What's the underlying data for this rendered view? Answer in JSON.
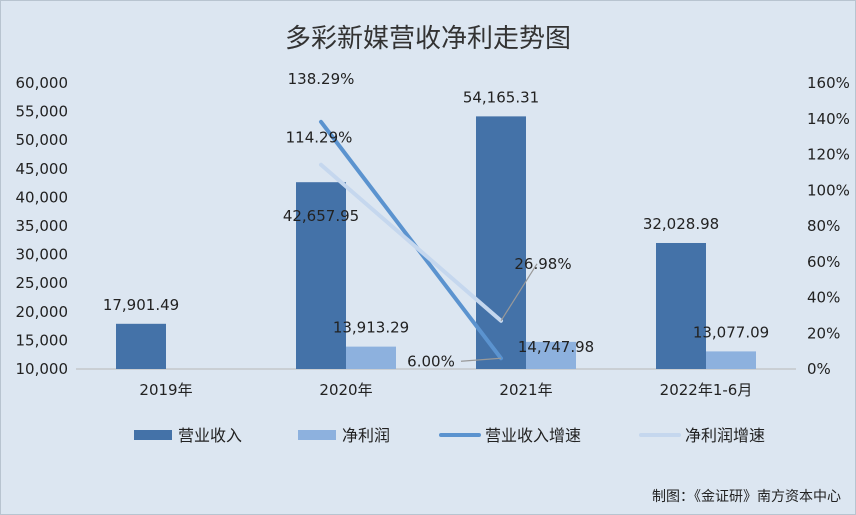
{
  "chart_data": {
    "type": "bar",
    "title": "多彩新媒营收净利走势图",
    "categories": [
      "2019年",
      "2020年",
      "2021年",
      "2022年1-6月"
    ],
    "series": [
      {
        "name": "营业收入",
        "type": "bar",
        "axis": "left",
        "color": "#4472a8",
        "values": [
          17901.49,
          42657.95,
          54165.31,
          32028.98
        ],
        "labels": [
          "17,901.49",
          "42,657.95",
          "54,165.31",
          "32,028.98"
        ]
      },
      {
        "name": "净利润",
        "type": "bar",
        "axis": "left",
        "color": "#8db1de",
        "values": [
          null,
          13913.29,
          14747.98,
          13077.09
        ],
        "labels": [
          "",
          "13,913.29",
          "14,747.98",
          "13,077.09"
        ]
      },
      {
        "name": "营业收入增速",
        "type": "line",
        "axis": "right",
        "color": "#5b93cf",
        "values": [
          null,
          138.29,
          6.0,
          null
        ],
        "labels": [
          "",
          "138.29%",
          "6.00%",
          ""
        ]
      },
      {
        "name": "净利润增速",
        "type": "line",
        "axis": "right",
        "color": "#c5d7ee",
        "values": [
          null,
          114.29,
          26.98,
          null
        ],
        "labels": [
          "",
          "114.29%",
          "26.98%",
          ""
        ]
      }
    ],
    "y_left": {
      "min": 10000,
      "max": 60000,
      "step": 5000,
      "tick_labels": [
        "10,000",
        "15,000",
        "20,000",
        "25,000",
        "30,000",
        "35,000",
        "40,000",
        "45,000",
        "50,000",
        "55,000",
        "60,000"
      ]
    },
    "y_right": {
      "min": 0,
      "max": 160,
      "step": 20,
      "tick_labels": [
        "0%",
        "20%",
        "40%",
        "60%",
        "80%",
        "100%",
        "120%",
        "140%",
        "160%"
      ]
    },
    "legend_position": "bottom",
    "grid": false
  },
  "credit": "制图：《金证研》南方资本中心"
}
